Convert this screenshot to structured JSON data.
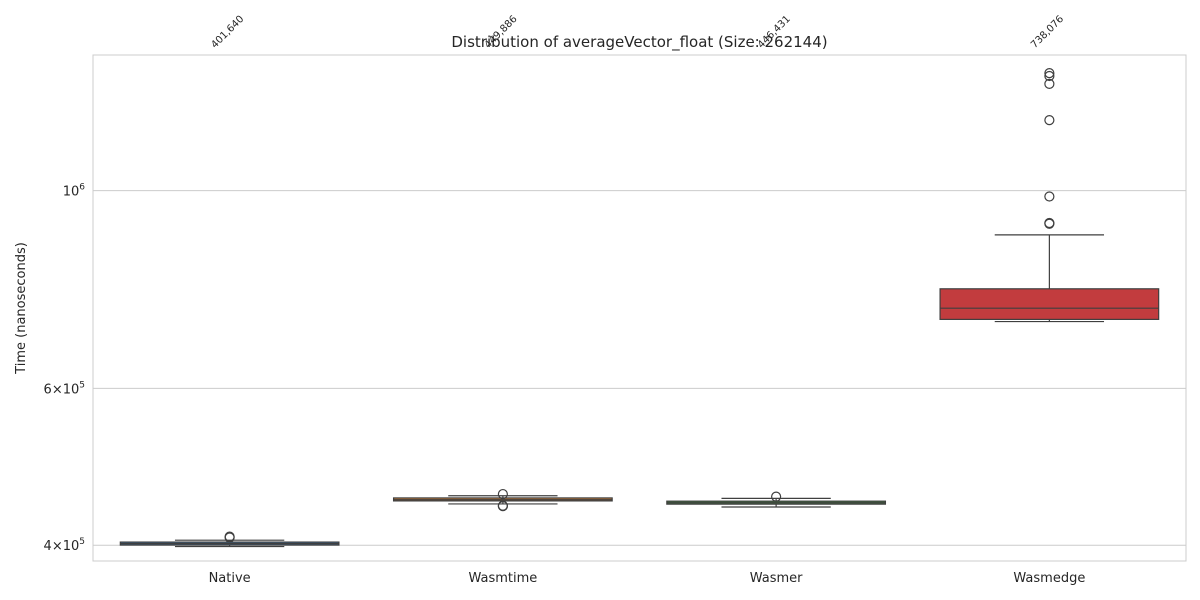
{
  "chart_data": {
    "type": "box",
    "title": "Distribution of averageVector_float (Size: 262144)",
    "xlabel": "",
    "ylabel": "Time (nanoseconds)",
    "yscale": "log",
    "ylim": [
      384000,
      1420000
    ],
    "yticks": [
      {
        "value": 400000,
        "base": "4",
        "exp": "5",
        "style": "mantissa"
      },
      {
        "value": 600000,
        "base": "6",
        "exp": "5",
        "style": "mantissa"
      },
      {
        "value": 1000000,
        "base": "10",
        "exp": "6",
        "style": "power"
      }
    ],
    "grid": true,
    "categories": [
      "Native",
      "Wasmtime",
      "Wasmer",
      "Wasmedge"
    ],
    "series": [
      {
        "category": "Native",
        "color": "#3a6c9b",
        "q1": 400400,
        "median": 401640,
        "q3": 403000,
        "whisker_low": 398600,
        "whisker_high": 405200,
        "outliers": [
          408000,
          409000
        ],
        "median_label": "401,640"
      },
      {
        "category": "Wasmtime",
        "color": "#c67c36",
        "q1": 449000,
        "median": 449886,
        "q3": 451500,
        "whisker_low": 445000,
        "whisker_high": 454500,
        "outliers": [
          456500,
          443000,
          442500
        ],
        "median_label": "449,886"
      },
      {
        "category": "Wasmer",
        "color": "#41903e",
        "q1": 445000,
        "median": 446431,
        "q3": 448000,
        "whisker_low": 441500,
        "whisker_high": 451500,
        "outliers": [
          453500
        ],
        "median_label": "446,431"
      },
      {
        "category": "Wasmedge",
        "color": "#c23c3e",
        "q1": 717000,
        "median": 738076,
        "q3": 776000,
        "whisker_low": 713000,
        "whisker_high": 892000,
        "outliers": [
          918000,
          920000,
          985000,
          1200000,
          1318000,
          1345000,
          1355000
        ],
        "median_label": "738,076"
      }
    ]
  }
}
